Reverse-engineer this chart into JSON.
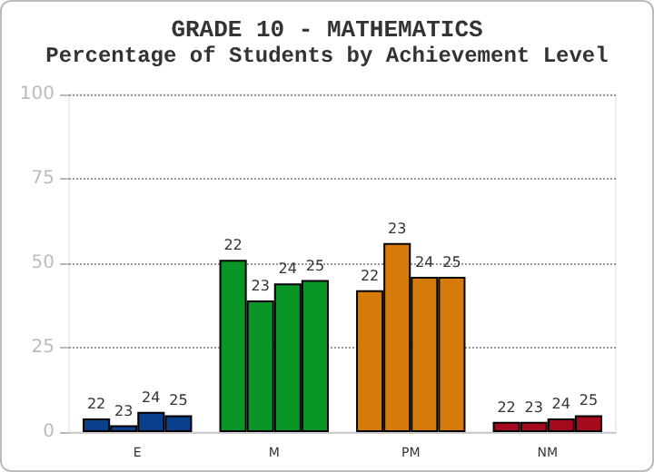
{
  "chart_data": {
    "type": "bar",
    "title": "GRADE 10 - MATHEMATICS",
    "subtitle": "Percentage of Students by Achievement Level",
    "categories": [
      "E",
      "M",
      "PM",
      "NM"
    ],
    "series": [
      {
        "name": "22",
        "colors": [
          "#0a3f8c",
          "#0a9627",
          "#d67b09",
          "#a50a1e"
        ],
        "values": [
          4,
          51,
          42,
          3
        ]
      },
      {
        "name": "23",
        "colors": [
          "#0a3f8c",
          "#0a9627",
          "#d67b09",
          "#a50a1e"
        ],
        "values": [
          2,
          39,
          56,
          3
        ]
      },
      {
        "name": "24",
        "colors": [
          "#0a3f8c",
          "#0a9627",
          "#d67b09",
          "#a50a1e"
        ],
        "values": [
          6,
          44,
          46,
          4
        ]
      },
      {
        "name": "25",
        "colors": [
          "#0a3f8c",
          "#0a9627",
          "#d67b09",
          "#a50a1e"
        ],
        "values": [
          5,
          45,
          46,
          5
        ]
      }
    ],
    "ylim": [
      0,
      100
    ],
    "yticks": [
      0,
      25,
      50,
      75,
      100
    ],
    "grid": "y",
    "legend": false
  }
}
